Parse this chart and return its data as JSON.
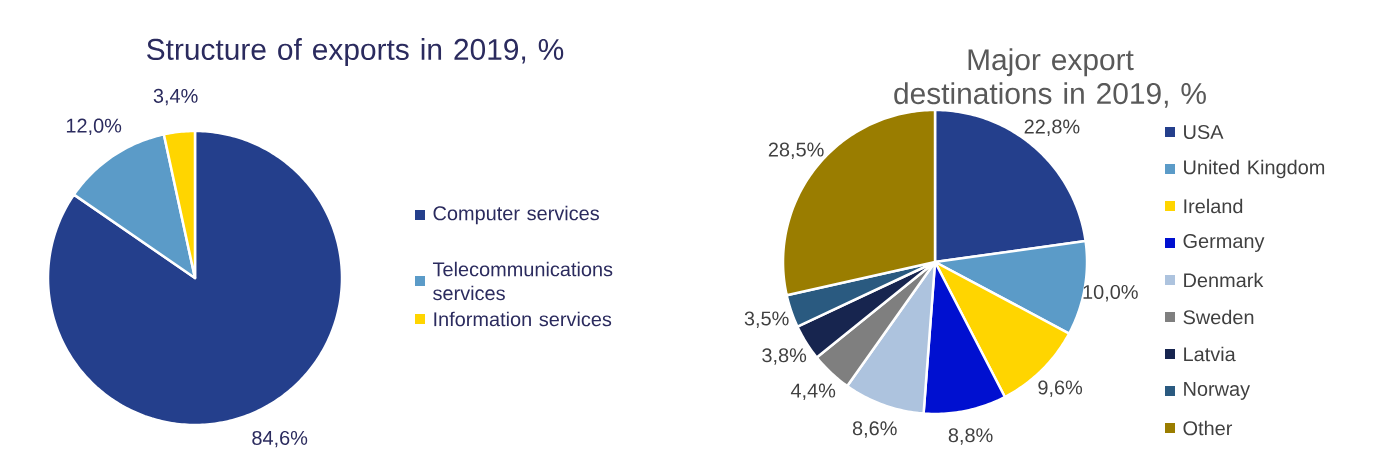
{
  "chart_data": [
    {
      "type": "pie",
      "title": "Structure of exports in 2019, %",
      "categories": [
        "Computer services",
        "Telecommunications services",
        "Information services"
      ],
      "values": [
        84.6,
        12.0,
        3.4
      ],
      "colors": [
        "#243f8c",
        "#5b9bc8",
        "#ffd500"
      ],
      "value_labels": [
        "84,6%",
        "12,0%",
        "3,4%"
      ],
      "legend": "right"
    },
    {
      "type": "pie",
      "title": "Major export destinations in 2019, %",
      "categories": [
        "USA",
        "United Kingdom",
        "Ireland",
        "Germany",
        "Denmark",
        "Sweden",
        "Latvia",
        "Norway",
        "Other"
      ],
      "values": [
        22.8,
        10.0,
        9.6,
        8.8,
        8.6,
        4.4,
        3.8,
        3.5,
        28.5
      ],
      "colors": [
        "#243f8c",
        "#5b9bc8",
        "#ffd500",
        "#0010d0",
        "#adc3de",
        "#7f7f7f",
        "#17254f",
        "#2a5a80",
        "#9a7d00"
      ],
      "value_labels": [
        "22,8%",
        "10,0%",
        "9,6%",
        "8,8%",
        "8,6%",
        "4,4%",
        "3,8%",
        "3,5%",
        "28,5%"
      ],
      "legend": "right"
    }
  ]
}
